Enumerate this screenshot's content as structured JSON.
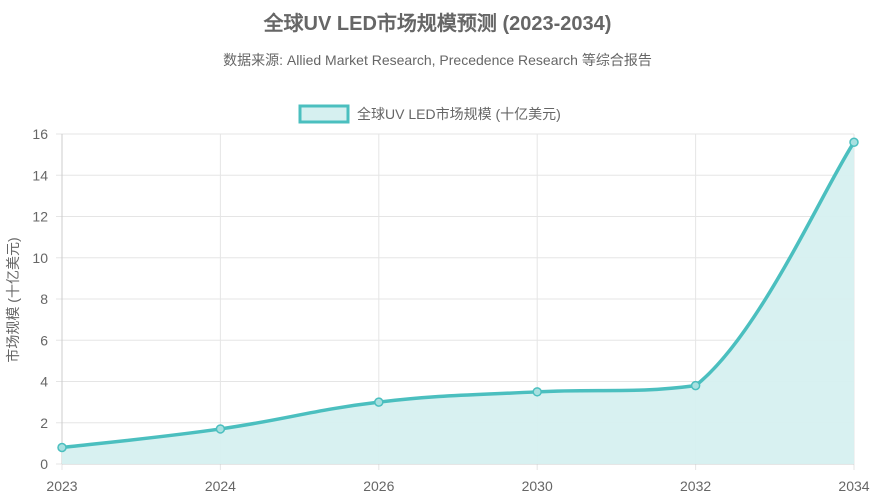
{
  "chart_data": {
    "type": "area",
    "title": "全球UV LED市场规模预测 (2023-2034)",
    "subtitle": "数据来源: Allied Market Research, Precedence Research 等综合报告",
    "x": [
      "2023",
      "2024",
      "2026",
      "2030",
      "2032",
      "2034"
    ],
    "series": [
      {
        "name": "全球UV LED市场规模 (十亿美元)",
        "values": [
          0.8,
          1.7,
          3.0,
          3.5,
          3.8,
          15.6
        ]
      }
    ],
    "ylabel": "市场规模 (十亿美元)",
    "xlabel": "",
    "ylim": [
      0,
      16
    ],
    "yticks": [
      0,
      2,
      4,
      6,
      8,
      10,
      12,
      14,
      16
    ],
    "grid": true,
    "legend_position": "top-center",
    "colors": {
      "line": "#4bbfbf",
      "fill": "#d6f0f0",
      "text": "#666666",
      "grid": "#e5e5e5"
    }
  }
}
